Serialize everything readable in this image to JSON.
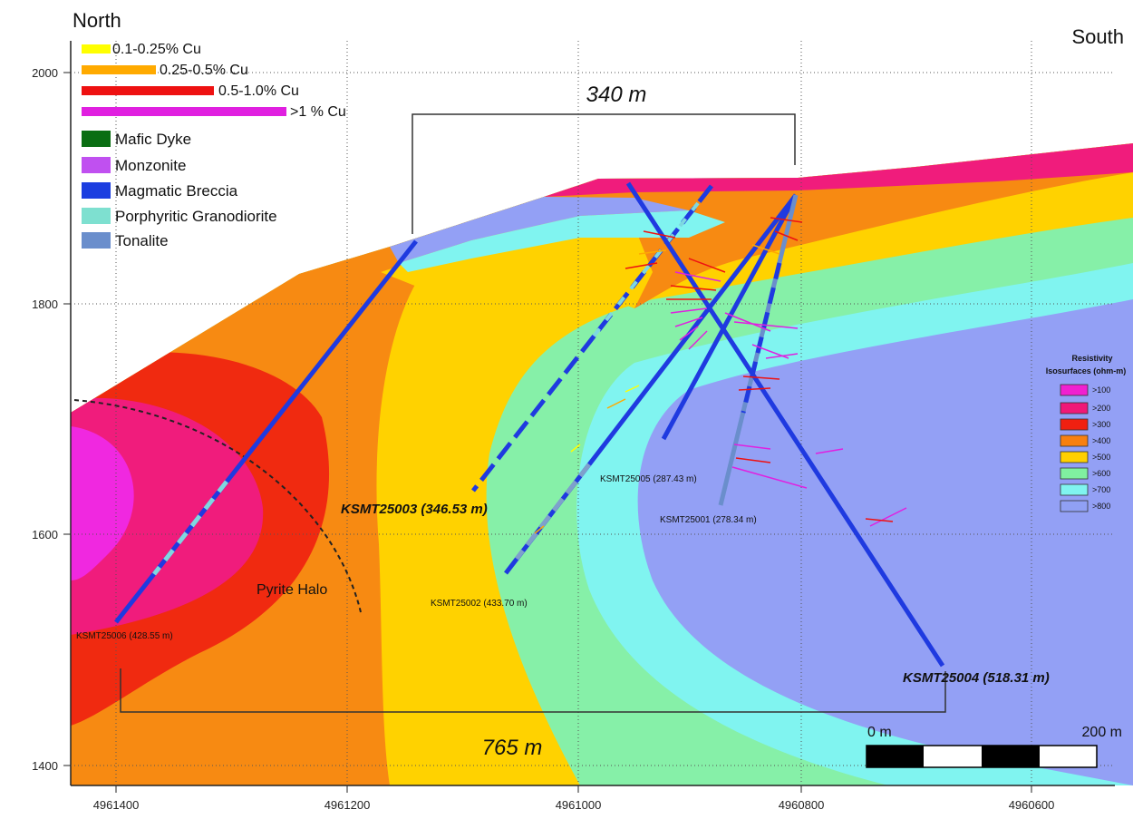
{
  "labels": {
    "north": "North",
    "south": "South",
    "span_top": "340 m",
    "span_bottom": "765 m",
    "pyrite_halo": "Pyrite Halo",
    "scale_start": "0 m",
    "scale_end": "200 m"
  },
  "axes": {
    "y_ticks": [
      "2000",
      "1800",
      "1600",
      "1400"
    ],
    "x_ticks": [
      "4961400",
      "4961200",
      "4961000",
      "4960800",
      "4960600"
    ]
  },
  "legend_cu": [
    {
      "label": "0.1-0.25% Cu",
      "color": "#ffff00"
    },
    {
      "label": "0.25-0.5% Cu",
      "color": "#ffaa00"
    },
    {
      "label": "0.5-1.0% Cu",
      "color": "#ee1111"
    },
    {
      "label": ">1 % Cu",
      "color": "#e020e0"
    }
  ],
  "legend_rock": [
    {
      "label": "Mafic Dyke",
      "color": "#0a6e12"
    },
    {
      "label": "Monzonite",
      "color": "#c050f0"
    },
    {
      "label": "Magmatic Breccia",
      "color": "#1c3ee0"
    },
    {
      "label": "Porphyritic Granodiorite",
      "color": "#7ee0d0"
    },
    {
      "label": "Tonalite",
      "color": "#6a8ecc"
    }
  ],
  "resistivity_legend": {
    "title_line1": "Resistivity",
    "title_line2": "Isosurfaces (ohm-m)",
    "items": [
      {
        "label": ">100",
        "color": "#f020d0"
      },
      {
        "label": ">200",
        "color": "#f01878"
      },
      {
        "label": ">300",
        "color": "#f02010"
      },
      {
        "label": ">400",
        "color": "#f88010"
      },
      {
        "label": ">500",
        "color": "#ffd000"
      },
      {
        "label": ">600",
        "color": "#80f0a0"
      },
      {
        "label": ">700",
        "color": "#80f4f0"
      },
      {
        "label": ">800",
        "color": "#90a0f4"
      }
    ]
  },
  "drillholes": [
    {
      "label": "KSMT25003 (346.53 m)"
    },
    {
      "label": "KSMT25005 (287.43 m)"
    },
    {
      "label": "KSMT25001 (278.34 m)"
    },
    {
      "label": "KSMT25002 (433.70 m)"
    },
    {
      "label": "KSMT25006 (428.55 m)"
    },
    {
      "label": "KSMT25004 (518.31 m)"
    }
  ]
}
